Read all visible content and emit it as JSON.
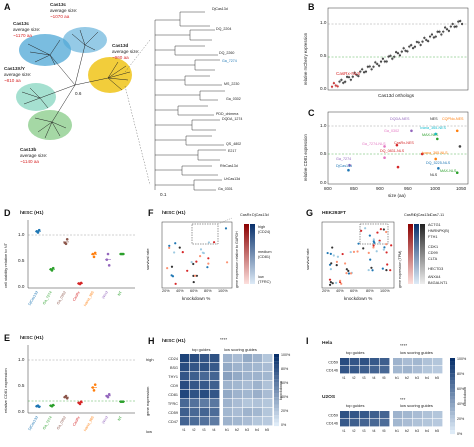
{
  "figure": {
    "panel_letters": [
      "A",
      "B",
      "C",
      "D",
      "E",
      "F",
      "G",
      "H",
      "I"
    ],
    "panelA": {
      "clusters": [
        {
          "name": "Cas13c",
          "size_label": "average size:",
          "size": "~1070 aa",
          "color": "#4ea7d6"
        },
        {
          "name": "Cas13c",
          "size_label": "average size:",
          "size": "~1170 aa",
          "color": "#4ea7d6"
        },
        {
          "name": "Cas13b",
          "size_label": "average size:",
          "size": "~1140 aa",
          "color": "#7fc87f"
        },
        {
          "name": "Cas13X/Y",
          "size_label": "average size:",
          "size": "~810 aa",
          "color": "#8ed8c4"
        },
        {
          "name": "Cas13d",
          "size_label": "average size:",
          "size": "~960 aa",
          "color": "#f0c419"
        }
      ],
      "scale_small": "0.6",
      "scale_large": "0.1",
      "leaf_labels": [
        "DjCas13d",
        "DQ_2204",
        "DQ_2260",
        "Ga_7274",
        "MS_2230",
        "Ga_0302",
        "PDD_chimera",
        "DQDA_1274",
        "QS_4802",
        "E217",
        "RfxCas13d",
        "UrCas13d",
        "Ga_0301",
        "Ga_7274"
      ]
    },
    "panelB": {
      "ylabel": "relative mCherry expression",
      "xlabel": "Cas13d orthologs",
      "yticks": [
        "0.0",
        "0.5",
        "1.0"
      ],
      "annotation": "CasRx-NLS"
    },
    "panelC": {
      "ylabel": "relative CD81 expression",
      "xlabel": "size (aa)",
      "yticks": [
        "0.0",
        "0.5",
        "1.0"
      ],
      "xticks": [
        "800",
        "850",
        "900",
        "950",
        "1000",
        "1050"
      ],
      "labels": [
        {
          "text": "DjCas13d",
          "color": "#1f77b4"
        },
        {
          "text": "Ga_7274",
          "color": "#9467bd"
        },
        {
          "text": "Ga_0302",
          "color": "#e377c2"
        },
        {
          "text": "DQ_0831-NLS",
          "color": "#d62728"
        },
        {
          "text": "Ga_7274-NLS",
          "color": "#e377c2"
        },
        {
          "text": "DQDA-NES",
          "color": "#9467bd"
        },
        {
          "text": "CasRx-NES",
          "color": "#d62728"
        },
        {
          "text": "Ivana_365-NES",
          "color": "#17becf"
        },
        {
          "text": "MAX-NLS",
          "color": "#2ca02c"
        },
        {
          "text": "CQPNo-NES",
          "color": "#ff7f0e"
        },
        {
          "text": "NES",
          "color": "#444444"
        },
        {
          "text": "DQ_5225-NLS",
          "color": "#1f77b4"
        },
        {
          "text": "Ivana_365-NLS",
          "color": "#ff7f0e"
        },
        {
          "text": "MAX-NLS",
          "color": "#2ca02c"
        },
        {
          "text": "NLS",
          "color": "#444444"
        }
      ]
    },
    "panelD": {
      "title": "hESC (H1)",
      "ylabel": "cell viability relative to NT",
      "yticks": [
        "0.0",
        "0.5",
        "1.0"
      ],
      "categories": [
        "DjCas13d",
        "Ga_7274",
        "Ga_0302",
        "CasRx",
        "Ivana_365",
        "Wind",
        "NT"
      ],
      "category_colors": [
        "#1f77b4",
        "#2ca02c",
        "#8c564b",
        "#d62728",
        "#ff7f0e",
        "#9467bd",
        "#2ca02c"
      ]
    },
    "panelE": {
      "title": "hESC (H1)",
      "ylabel": "relative CD81 expression",
      "yticks": [
        "0.0",
        "0.5",
        "1.0"
      ],
      "categories": [
        "DjCas13d",
        "Ga_7274",
        "Ga_0302",
        "CasRx",
        "Ivana_365",
        "Wind",
        "NT"
      ]
    },
    "panelF": {
      "title": "hESC (H1)",
      "ylabel": "survival rate",
      "xlabel": "knockdown %",
      "xticks": [
        "20%",
        "40%",
        "60%",
        "80%",
        "100%"
      ],
      "legend_cols": [
        "CasRx",
        "DjCas13d"
      ],
      "colorbar_label": "gene expression relative to GAPDH",
      "high": "high",
      "high_sub": "(CD24)",
      "medium": "medium",
      "medium_sub": "(CD81)",
      "low": "low",
      "low_sub": "(TFRC)"
    },
    "panelG": {
      "title": "HEK293FT",
      "ylabel": "survival rate",
      "xlabel": "knockdown %",
      "xticks": [
        "20%",
        "40%",
        "60%",
        "80%",
        "100%"
      ],
      "legend_cols": [
        "CasRx",
        "DjCas13d",
        "Cas7-11"
      ],
      "colorbar_label": "gene expression (TPM)",
      "genes": [
        "ACTG1",
        "HNRNPK(B)",
        "FTH1",
        "CDK1",
        "CD99",
        "CLTA",
        "HECTD3",
        "ANXA4",
        "B4GALNT1"
      ]
    },
    "panelH": {
      "title": "hESC (H1)",
      "significance": "****",
      "top_label": "top guides",
      "low_label": "low scoring guides",
      "high_label": "high",
      "low_axis": "low",
      "ylabel": "gene expression",
      "genes": [
        "CD24",
        "BSG",
        "THY1",
        "CD9",
        "CD81",
        "TFRC",
        "CD59",
        "CD47"
      ],
      "guides": [
        "t1",
        "t2",
        "t3",
        "t4",
        "b1",
        "b2",
        "b3",
        "b4",
        "b5"
      ],
      "colorbar": [
        "100%",
        "80%",
        "60%",
        "40%",
        "20%",
        "0%"
      ],
      "colorbar_title": "knockdown"
    },
    "panelI": {
      "hela_title": "Hela",
      "u2os_title": "U2OS",
      "sig_hela": "****",
      "sig_u2os": "***",
      "top_label": "top guides",
      "low_label": "low scoring guides",
      "genes": [
        "CD59",
        "CD146"
      ],
      "guides": [
        "t1",
        "t2",
        "t3",
        "t4",
        "t5",
        "b1",
        "b2",
        "b3",
        "b4",
        "b5"
      ],
      "colorbar": [
        "100%",
        "80%",
        "60%",
        "40%",
        "20%",
        "0%"
      ],
      "colorbar_title": "knockdown"
    }
  },
  "chart_data": [
    {
      "type": "scatter",
      "panel": "B",
      "ylabel": "relative mCherry expression",
      "xlabel": "Cas13d orthologs",
      "ylim": [
        0,
        1.15
      ]
    },
    {
      "type": "scatter",
      "panel": "C",
      "ylabel": "relative CD81 expression",
      "xlabel": "size (aa)",
      "xlim": [
        800,
        1060
      ],
      "ylim": [
        0,
        1.15
      ]
    },
    {
      "type": "scatter",
      "panel": "D",
      "ylim": [
        0,
        1.2
      ],
      "series": [
        {
          "name": "DjCas13d",
          "values": [
            1.0,
            0.98,
            1.02
          ]
        },
        {
          "name": "Ga_7274",
          "values": [
            0.33,
            0.31,
            0.35
          ]
        },
        {
          "name": "Ga_0302",
          "values": [
            0.8,
            0.78,
            0.86
          ]
        },
        {
          "name": "CasRx",
          "values": [
            0.08,
            0.07,
            0.09
          ]
        },
        {
          "name": "Ivana_365",
          "values": [
            0.6,
            0.55,
            0.62
          ]
        },
        {
          "name": "Wind",
          "values": [
            0.5,
            0.6,
            0.4
          ]
        },
        {
          "name": "NT",
          "values": [
            0.6,
            0.6,
            0.6
          ]
        }
      ]
    },
    {
      "type": "scatter",
      "panel": "E",
      "ylim": [
        0,
        1.2
      ],
      "series": [
        {
          "name": "DjCas13d",
          "values": [
            0.12,
            0.13,
            0.11
          ]
        },
        {
          "name": "Ga_7274",
          "values": [
            0.13,
            0.12,
            0.14
          ]
        },
        {
          "name": "Ga_0302",
          "values": [
            0.28,
            0.3,
            0.26
          ]
        },
        {
          "name": "CasRx",
          "values": [
            0.18,
            0.16,
            0.2
          ]
        },
        {
          "name": "Ivana_365",
          "values": [
            0.45,
            0.4,
            0.5
          ]
        },
        {
          "name": "Wind",
          "values": [
            0.3,
            0.28,
            0.33
          ]
        },
        {
          "name": "NT",
          "values": [
            0.2,
            0.2,
            0.2
          ]
        }
      ]
    },
    {
      "type": "heatmap",
      "panel": "H",
      "rows": [
        "CD24",
        "BSG",
        "THY1",
        "CD9",
        "CD81",
        "TFRC",
        "CD59",
        "CD47"
      ],
      "cols": [
        "t1",
        "t2",
        "t3",
        "t4",
        "b1",
        "b2",
        "b3",
        "b4",
        "b5"
      ],
      "values": [
        [
          0.9,
          0.85,
          0.8,
          0.82,
          0.3,
          0.25,
          0.35,
          0.3,
          0.2
        ],
        [
          0.85,
          0.8,
          0.82,
          0.78,
          0.35,
          0.3,
          0.3,
          0.28,
          0.25
        ],
        [
          0.8,
          0.75,
          0.7,
          0.72,
          0.4,
          0.35,
          0.3,
          0.3,
          0.28
        ],
        [
          0.85,
          0.8,
          0.78,
          0.75,
          0.3,
          0.28,
          0.25,
          0.3,
          0.22
        ],
        [
          0.88,
          0.82,
          0.85,
          0.8,
          0.35,
          0.3,
          0.28,
          0.32,
          0.25
        ],
        [
          0.7,
          0.65,
          0.6,
          0.62,
          0.3,
          0.25,
          0.2,
          0.22,
          0.2
        ],
        [
          0.75,
          0.7,
          0.72,
          0.68,
          0.28,
          0.25,
          0.3,
          0.28,
          0.2
        ],
        [
          0.72,
          0.68,
          0.65,
          0.6,
          0.3,
          0.28,
          0.25,
          0.2,
          0.18
        ]
      ]
    },
    {
      "type": "heatmap",
      "panel": "I-Hela",
      "rows": [
        "CD59",
        "CD146"
      ],
      "cols": [
        "t1",
        "t2",
        "t3",
        "t4",
        "t5",
        "b1",
        "b2",
        "b3",
        "b4",
        "b5"
      ],
      "values": [
        [
          0.85,
          0.8,
          0.82,
          0.78,
          0.75,
          0.3,
          0.25,
          0.28,
          0.22,
          0.2
        ],
        [
          0.8,
          0.78,
          0.75,
          0.72,
          0.7,
          0.28,
          0.3,
          0.25,
          0.2,
          0.18
        ]
      ]
    },
    {
      "type": "heatmap",
      "panel": "I-U2OS",
      "rows": [
        "CD59",
        "CD146"
      ],
      "cols": [
        "t1",
        "t2",
        "t3",
        "t4",
        "t5",
        "b1",
        "b2",
        "b3",
        "b4",
        "b5"
      ],
      "values": [
        [
          0.82,
          0.8,
          0.78,
          0.75,
          0.72,
          0.3,
          0.28,
          0.25,
          0.22,
          0.2
        ],
        [
          0.78,
          0.75,
          0.72,
          0.7,
          0.68,
          0.28,
          0.25,
          0.22,
          0.2,
          0.18
        ]
      ]
    }
  ]
}
